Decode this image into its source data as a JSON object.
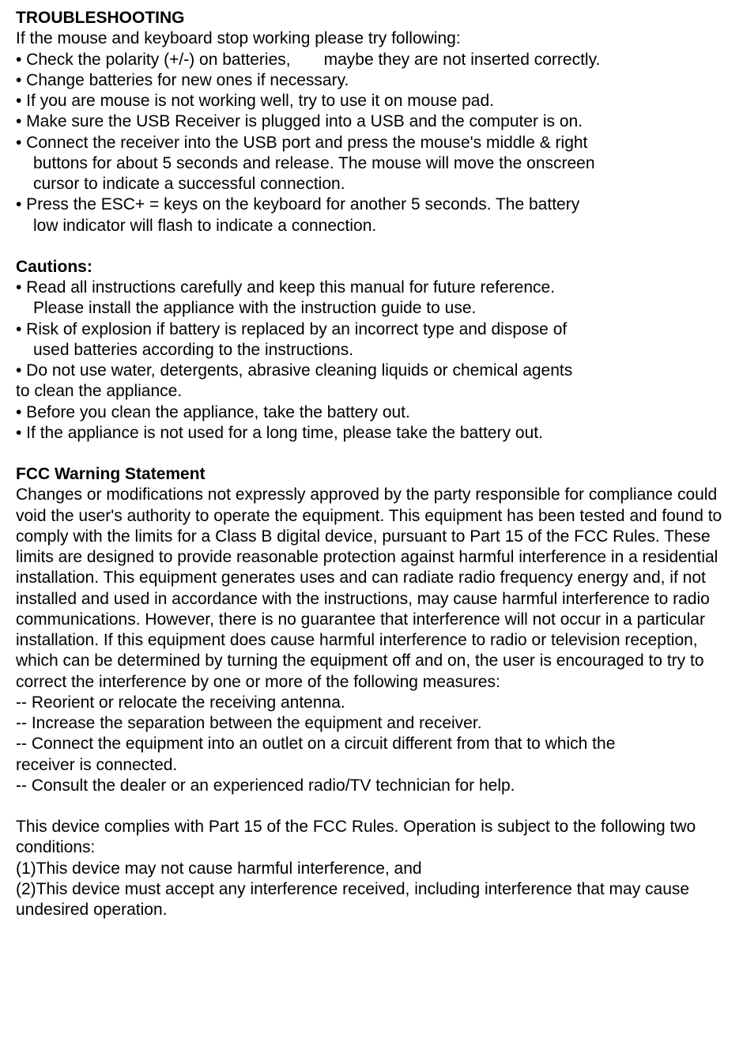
{
  "troubleshooting": {
    "title": "TROUBLESHOOTING",
    "intro": "If the mouse and keyboard stop working please try following:",
    "items": [
      "• Check the polarity (+/-) on batteries,  maybe they are not inserted correctly.",
      "• Change batteries for new ones if necessary.",
      "• If you are mouse is not working well, try to use it on mouse pad.",
      "• Make sure the USB Receiver is plugged into a USB and the computer is on.",
      "• Connect the receiver into the USB port and press the mouse's middle & right",
      "buttons for about 5 seconds and release. The mouse will move the onscreen",
      "cursor to indicate a successful connection.",
      "• Press the ESC+ = keys on the keyboard for another 5 seconds. The battery",
      "low indicator will flash to indicate a connection."
    ]
  },
  "cautions": {
    "title": "Cautions:",
    "items": [
      "• Read all instructions carefully and keep this manual for future reference.",
      "Please install the appliance with the instruction guide to use.",
      "• Risk of explosion if battery is replaced by an incorrect type and dispose of",
      "used batteries according to the instructions.",
      "• Do not use water, detergents, abrasive cleaning liquids or chemical agents",
      "to clean the appliance.",
      "• Before you clean the appliance, take the battery out.",
      "• If the appliance is not used for a long time, please take the battery out."
    ]
  },
  "fcc": {
    "title": "FCC Warning Statement",
    "para1": "Changes or modifications not expressly approved by the party responsible for compliance could void the user's authority to operate the equipment. This equipment has been tested and found to comply with the limits for a Class B digital device, pursuant to Part 15 of the FCC Rules. These limits are designed to provide reasonable protection against harmful interference in a residential installation. This equipment generates uses and can radiate radio frequency energy and, if not installed and used in accordance with the instructions, may cause harmful interference to radio communications. However, there is no guarantee that interference will not occur in a particular installation. If this equipment does cause harmful interference to radio or television reception, which can be determined by turning the equipment off and on, the user is encouraged to try to correct the interference by one or more of the following measures:",
    "measures": [
      "‐‐ Reorient or relocate the receiving antenna.",
      "‐‐ Increase the separation between the equipment and receiver.",
      "‐‐ Connect the equipment into an outlet on a circuit different from that to which the",
      "receiver is connected.",
      "‐‐ Consult the dealer or an experienced radio/TV technician for help."
    ],
    "para2": "This device complies with Part 15 of the FCC Rules. Operation is subject to the following two conditions:",
    "conditions": [
      "(1)This device may not cause harmful interference, and",
      "(2)This device must accept any interference received, including interference that may cause undesired operation."
    ]
  }
}
